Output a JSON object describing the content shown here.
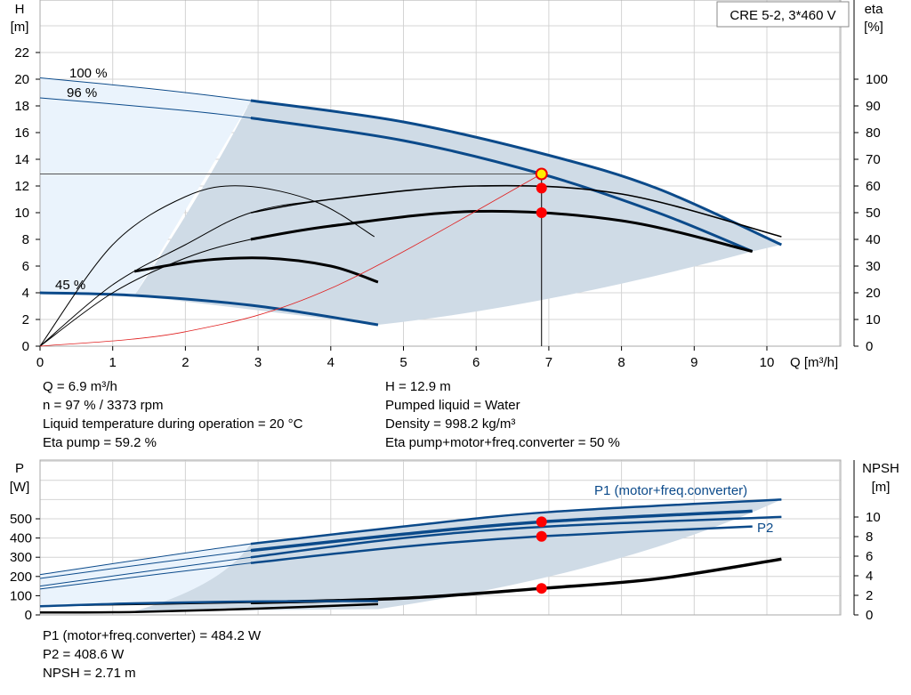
{
  "chart_data": [
    {
      "type": "line",
      "product_label": "CRE 5-2, 3*460 V",
      "xlabel": "Q [m³/h]",
      "ylabel": "H",
      "ylabel_unit": "[m]",
      "y2label": "eta",
      "y2label_unit": "[%]",
      "xlim": [
        0,
        11
      ],
      "ylim": [
        0,
        23
      ],
      "y2lim": [
        0,
        115
      ],
      "xticks": [
        0,
        1,
        2,
        3,
        4,
        5,
        6,
        7,
        8,
        9,
        10
      ],
      "yticks": [
        0,
        2,
        4,
        6,
        8,
        10,
        12,
        14,
        16,
        18,
        20,
        22
      ],
      "y2ticks": [
        0,
        10,
        20,
        30,
        40,
        50,
        60,
        70,
        80,
        90,
        100
      ],
      "grid": true,
      "speed_labels": [
        "100 %",
        "96 %",
        "45 %"
      ],
      "series": [
        {
          "axis": "H",
          "color": "#0b4a8a",
          "x": [
            0,
            1.5,
            2.9,
            5,
            7,
            8.5,
            10.2
          ],
          "y": [
            20.1,
            19.3,
            18.4,
            16.8,
            14.3,
            11.8,
            7.6
          ]
        },
        {
          "axis": "H",
          "color": "#0b4a8a",
          "x": [
            0,
            1.5,
            2.9,
            5,
            6.9,
            8.5,
            9.8
          ],
          "y": [
            18.6,
            17.9,
            17.1,
            15.4,
            12.9,
            10.0,
            7.1
          ]
        },
        {
          "axis": "H",
          "color": "#0b4a8a",
          "x": [
            0,
            1.3,
            3,
            4.65
          ],
          "y": [
            4.0,
            3.8,
            3.0,
            1.6
          ]
        },
        {
          "axis": "eta",
          "color": "#000",
          "x": [
            0,
            1,
            2,
            2.9,
            4,
            6,
            8,
            10.2
          ],
          "y": [
            0,
            23,
            38,
            50,
            55,
            60,
            57,
            41
          ]
        },
        {
          "axis": "eta",
          "color": "#000",
          "x": [
            0,
            1,
            2,
            2.9,
            4,
            6,
            8,
            9.8
          ],
          "y": [
            0,
            20,
            33,
            40,
            45,
            50.5,
            47,
            35.5
          ]
        },
        {
          "axis": "eta",
          "color": "#000",
          "x": [
            0,
            1,
            2,
            2.8,
            3.8,
            4.6
          ],
          "y": [
            0,
            38,
            56,
            60,
            54,
            41
          ]
        },
        {
          "axis": "eta",
          "color": "#000",
          "x": [
            1.3,
            2.2,
            3.1,
            4,
            4.65
          ],
          "y": [
            28,
            32,
            33,
            30,
            24
          ]
        },
        {
          "axis": "H",
          "color": "#e02020",
          "x": [
            0,
            2,
            4,
            6.9
          ],
          "y": [
            0,
            1.08,
            4.33,
            12.9
          ]
        }
      ],
      "duty_point": {
        "Q": 6.9,
        "H": 12.9,
        "eta_pump": 59.2,
        "eta_total": 50
      }
    },
    {
      "type": "line",
      "ylabel": "P",
      "ylabel_unit": "[W]",
      "y2label": "NPSH",
      "y2label_unit": "[m]",
      "xlim": [
        0,
        11
      ],
      "ylim": [
        0,
        800
      ],
      "y2lim": [
        0,
        14
      ],
      "yticks": [
        0,
        100,
        200,
        300,
        400,
        500
      ],
      "y2ticks": [
        0,
        2,
        4,
        6,
        8,
        10
      ],
      "grid": true,
      "series_labels": [
        "P1 (motor+freq.converter)",
        "P2"
      ],
      "series": [
        {
          "axis": "P",
          "color": "#0b4a8a",
          "x": [
            0,
            2.9,
            5,
            7,
            10.2
          ],
          "y": [
            210,
            370,
            460,
            535,
            600
          ]
        },
        {
          "axis": "P",
          "color": "#0b4a8a",
          "x": [
            0,
            2.9,
            5,
            6.9,
            9.8
          ],
          "y": [
            190,
            335,
            420,
            484,
            540
          ]
        },
        {
          "axis": "P",
          "color": "#0b4a8a",
          "x": [
            0,
            2.9,
            5,
            7,
            10.2
          ],
          "y": [
            150,
            300,
            400,
            460,
            510
          ]
        },
        {
          "axis": "P",
          "color": "#0b4a8a",
          "x": [
            0,
            2.9,
            5,
            6.9,
            9.8
          ],
          "y": [
            135,
            270,
            355,
            409,
            460
          ]
        },
        {
          "axis": "NPSH",
          "color": "#000",
          "x": [
            0,
            2.9,
            5,
            6.9,
            8.5,
            10.2
          ],
          "y": [
            0.9,
            1.25,
            1.7,
            2.71,
            3.7,
            5.7
          ]
        },
        {
          "axis": "NPSH",
          "color": "#000",
          "x": [
            0,
            1.3,
            3,
            4.65
          ],
          "y": [
            0.25,
            0.3,
            0.65,
            1.1
          ]
        },
        {
          "axis": "P",
          "color": "#0b4a8a",
          "x": [
            0,
            1.3,
            3,
            4.65
          ],
          "y": [
            45,
            60,
            70,
            72
          ]
        }
      ],
      "duty_point": {
        "P1": 484.2,
        "P2": 408.6,
        "NPSH": 2.71
      }
    }
  ],
  "results_top": {
    "left": [
      "Q = 6.9 m³/h",
      "n = 97 % / 3373 rpm",
      "Liquid temperature during operation = 20 °C",
      "Eta pump = 59.2 %"
    ],
    "right": [
      "H = 12.9 m",
      "Pumped liquid = Water",
      "Density = 998.2 kg/m³",
      "Eta pump+motor+freq.converter = 50 %"
    ]
  },
  "results_bottom": [
    "P1 (motor+freq.converter) = 484.2 W",
    "P2 = 408.6 W",
    "NPSH = 2.71 m"
  ]
}
